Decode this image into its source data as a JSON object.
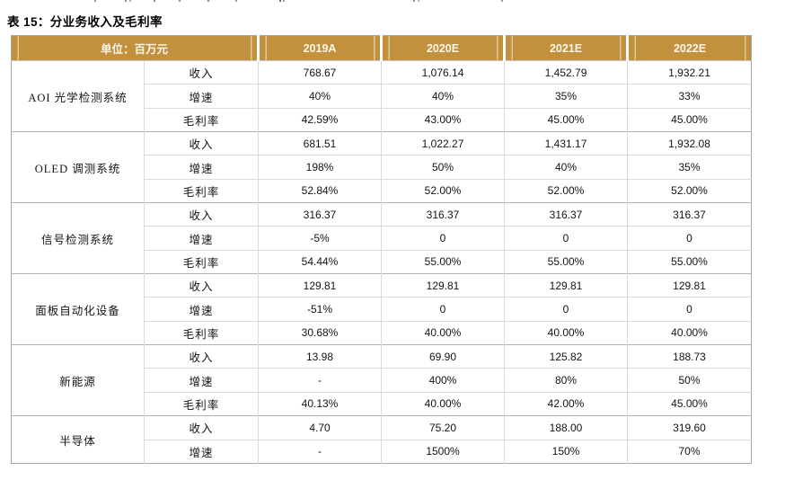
{
  "title": "表 15：分业务收入及毛利率",
  "colors": {
    "header_bg": "#C2913E",
    "header_text": "#FAF6EC",
    "grid_light": "#D9D9D9",
    "grid_group": "#B3B3B3",
    "outer_border": "#A6A6A6"
  },
  "table": {
    "unit_header": "单位：百万元",
    "year_columns": [
      "2019A",
      "2020E",
      "2021E",
      "2022E"
    ],
    "groups": [
      {
        "name": "AOI 光学检测系统",
        "rows": [
          {
            "metric": "收入",
            "values": [
              "768.67",
              "1,076.14",
              "1,452.79",
              "1,932.21"
            ]
          },
          {
            "metric": "增速",
            "values": [
              "40%",
              "40%",
              "35%",
              "33%"
            ]
          },
          {
            "metric": "毛利率",
            "values": [
              "42.59%",
              "43.00%",
              "45.00%",
              "45.00%"
            ]
          }
        ]
      },
      {
        "name": "OLED 调测系统",
        "rows": [
          {
            "metric": "收入",
            "values": [
              "681.51",
              "1,022.27",
              "1,431.17",
              "1,932.08"
            ]
          },
          {
            "metric": "增速",
            "values": [
              "198%",
              "50%",
              "40%",
              "35%"
            ]
          },
          {
            "metric": "毛利率",
            "values": [
              "52.84%",
              "52.00%",
              "52.00%",
              "52.00%"
            ]
          }
        ]
      },
      {
        "name": "信号检测系统",
        "rows": [
          {
            "metric": "收入",
            "values": [
              "316.37",
              "316.37",
              "316.37",
              "316.37"
            ]
          },
          {
            "metric": "增速",
            "values": [
              "-5%",
              "0",
              "0",
              "0"
            ]
          },
          {
            "metric": "毛利率",
            "values": [
              "54.44%",
              "55.00%",
              "55.00%",
              "55.00%"
            ]
          }
        ]
      },
      {
        "name": "面板自动化设备",
        "rows": [
          {
            "metric": "收入",
            "values": [
              "129.81",
              "129.81",
              "129.81",
              "129.81"
            ]
          },
          {
            "metric": "增速",
            "values": [
              "-51%",
              "0",
              "0",
              "0"
            ]
          },
          {
            "metric": "毛利率",
            "values": [
              "30.68%",
              "40.00%",
              "40.00%",
              "40.00%"
            ]
          }
        ]
      },
      {
        "name": "新能源",
        "rows": [
          {
            "metric": "收入",
            "values": [
              "13.98",
              "69.90",
              "125.82",
              "188.73"
            ]
          },
          {
            "metric": "增速",
            "values": [
              "-",
              "400%",
              "80%",
              "50%"
            ]
          },
          {
            "metric": "毛利率",
            "values": [
              "40.13%",
              "40.00%",
              "42.00%",
              "45.00%"
            ]
          }
        ]
      },
      {
        "name": "半导体",
        "rows": [
          {
            "metric": "收入",
            "values": [
              "4.70",
              "75.20",
              "188.00",
              "319.60"
            ]
          },
          {
            "metric": "增速",
            "values": [
              "-",
              "1500%",
              "150%",
              "70%"
            ]
          }
        ]
      }
    ]
  }
}
